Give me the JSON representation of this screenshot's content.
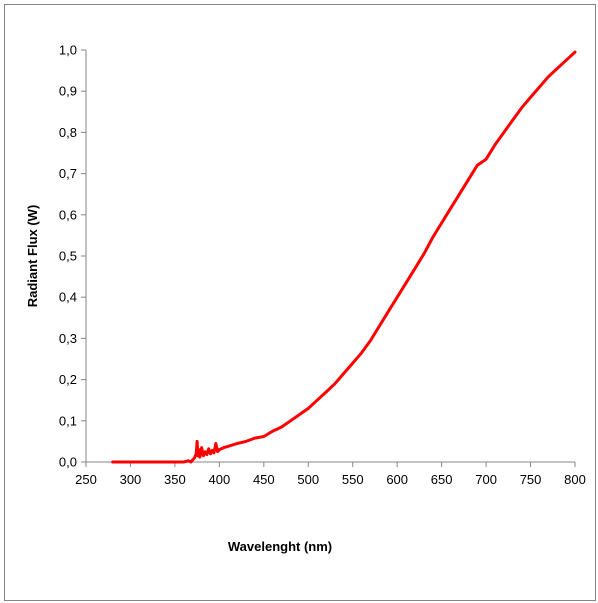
{
  "chart_data": {
    "type": "line",
    "title": "",
    "xlabel": "Wavelenght (nm)",
    "ylabel": "Radiant Flux (W)",
    "xlim": [
      250,
      800
    ],
    "ylim": [
      0.0,
      1.0
    ],
    "x_ticks": [
      "250",
      "300",
      "350",
      "400",
      "450",
      "500",
      "550",
      "600",
      "650",
      "700",
      "750",
      "800"
    ],
    "y_ticks": [
      "0,0",
      "0,1",
      "0,2",
      "0,3",
      "0,4",
      "0,5",
      "0,6",
      "0,7",
      "0,8",
      "0,9",
      "1,0"
    ],
    "grid": false,
    "legend": "none",
    "series": [
      {
        "color": "#ff0000",
        "x": [
          280,
          300,
          320,
          340,
          355,
          360,
          365,
          368,
          370,
          372,
          374,
          375,
          376,
          377,
          378,
          380,
          382,
          384,
          386,
          388,
          390,
          392,
          394,
          396,
          398,
          400,
          405,
          410,
          420,
          430,
          440,
          450,
          460,
          470,
          480,
          490,
          500,
          510,
          520,
          530,
          540,
          550,
          560,
          570,
          580,
          590,
          600,
          610,
          620,
          630,
          640,
          650,
          660,
          670,
          680,
          690,
          700,
          710,
          720,
          730,
          740,
          750,
          760,
          770,
          780,
          790,
          795,
          800
        ],
        "y": [
          0.0,
          0.0,
          0.0,
          0.0,
          0.0,
          0.0,
          0.003,
          0.0,
          0.005,
          0.01,
          0.02,
          0.05,
          0.015,
          0.03,
          0.012,
          0.035,
          0.015,
          0.025,
          0.018,
          0.032,
          0.02,
          0.028,
          0.022,
          0.045,
          0.025,
          0.03,
          0.035,
          0.038,
          0.045,
          0.05,
          0.058,
          0.062,
          0.075,
          0.085,
          0.1,
          0.115,
          0.13,
          0.15,
          0.17,
          0.19,
          0.215,
          0.24,
          0.265,
          0.295,
          0.33,
          0.365,
          0.4,
          0.435,
          0.47,
          0.505,
          0.545,
          0.58,
          0.615,
          0.65,
          0.685,
          0.72,
          0.735,
          0.77,
          0.8,
          0.83,
          0.86,
          0.885,
          0.91,
          0.935,
          0.955,
          0.975,
          0.985,
          0.995
        ]
      }
    ]
  }
}
